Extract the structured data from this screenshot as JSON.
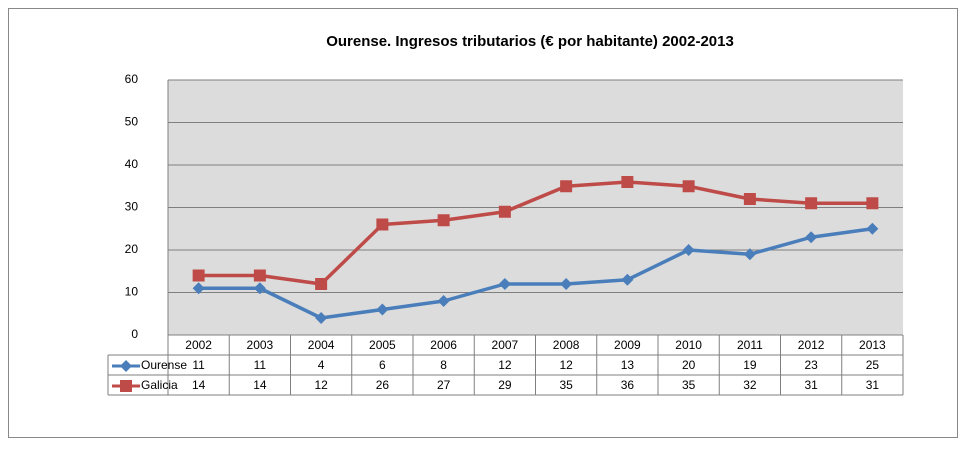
{
  "chart_data": {
    "type": "line",
    "title": "Ourense. Ingresos tributarios (€ por habitante) 2002-2013",
    "categories": [
      "2002",
      "2003",
      "2004",
      "2005",
      "2006",
      "2007",
      "2008",
      "2009",
      "2010",
      "2011",
      "2012",
      "2013"
    ],
    "series": [
      {
        "name": "Ourense",
        "color": "#4a7ebb",
        "marker": "diamond",
        "values": [
          11,
          11,
          4,
          6,
          8,
          12,
          12,
          13,
          20,
          19,
          23,
          25
        ]
      },
      {
        "name": "Galicia",
        "color": "#be4b48",
        "marker": "square",
        "values": [
          14,
          14,
          12,
          26,
          27,
          29,
          35,
          36,
          35,
          32,
          31,
          31
        ]
      }
    ],
    "ylim": [
      0,
      60
    ],
    "yticks": [
      0,
      10,
      20,
      30,
      40,
      50,
      60
    ],
    "grid": true
  }
}
